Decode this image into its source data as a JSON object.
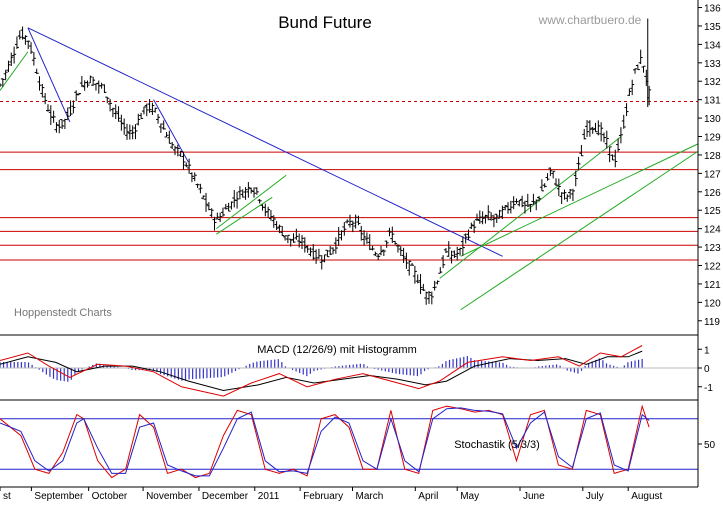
{
  "chart_data": {
    "type": "ohlc",
    "title": "Bund Future",
    "watermark": "www.chartbuero.de",
    "source_label": "Hoppenstedt Charts",
    "price_axis": {
      "ylim": [
        118.5,
        136.3
      ],
      "ticks": [
        "136",
        "135",
        "134",
        "133",
        "132",
        "131",
        "130",
        "129",
        "128",
        "127",
        "126",
        "125",
        "124",
        "123",
        "122",
        "121",
        "120",
        "119"
      ]
    },
    "time_axis": {
      "months": [
        {
          "label": "st",
          "pos": 0.0
        },
        {
          "label": "September",
          "pos": 0.045
        },
        {
          "label": "October",
          "pos": 0.127
        },
        {
          "label": "November",
          "pos": 0.205
        },
        {
          "label": "December",
          "pos": 0.285
        },
        {
          "label": "2011",
          "pos": 0.365
        },
        {
          "label": "February",
          "pos": 0.43
        },
        {
          "label": "March",
          "pos": 0.505
        },
        {
          "label": "April",
          "pos": 0.595
        },
        {
          "label": "May",
          "pos": 0.655
        },
        {
          "label": "June",
          "pos": 0.745
        },
        {
          "label": "July",
          "pos": 0.835
        },
        {
          "label": "August",
          "pos": 0.9
        }
      ]
    },
    "price_path": [
      [
        0.0,
        131.8
      ],
      [
        0.01,
        132.6
      ],
      [
        0.02,
        133.6
      ],
      [
        0.03,
        134.6
      ],
      [
        0.04,
        134.3
      ],
      [
        0.05,
        133.0
      ],
      [
        0.06,
        131.5
      ],
      [
        0.07,
        130.4
      ],
      [
        0.08,
        129.6
      ],
      [
        0.09,
        129.7
      ],
      [
        0.1,
        130.3
      ],
      [
        0.11,
        131.3
      ],
      [
        0.12,
        131.9
      ],
      [
        0.13,
        132.1
      ],
      [
        0.14,
        131.8
      ],
      [
        0.15,
        131.6
      ],
      [
        0.16,
        130.6
      ],
      [
        0.17,
        130.0
      ],
      [
        0.18,
        129.3
      ],
      [
        0.19,
        129.2
      ],
      [
        0.2,
        130.0
      ],
      [
        0.21,
        130.6
      ],
      [
        0.22,
        130.5
      ],
      [
        0.23,
        129.8
      ],
      [
        0.24,
        129.0
      ],
      [
        0.25,
        128.3
      ],
      [
        0.26,
        128.0
      ],
      [
        0.27,
        127.3
      ],
      [
        0.28,
        126.6
      ],
      [
        0.29,
        125.8
      ],
      [
        0.3,
        125.0
      ],
      [
        0.31,
        124.4
      ],
      [
        0.32,
        124.9
      ],
      [
        0.33,
        125.3
      ],
      [
        0.34,
        125.8
      ],
      [
        0.35,
        126.0
      ],
      [
        0.36,
        126.3
      ],
      [
        0.37,
        125.9
      ],
      [
        0.38,
        125.0
      ],
      [
        0.39,
        124.6
      ],
      [
        0.4,
        124.0
      ],
      [
        0.41,
        123.6
      ],
      [
        0.42,
        123.3
      ],
      [
        0.43,
        123.4
      ],
      [
        0.44,
        123.0
      ],
      [
        0.45,
        122.6
      ],
      [
        0.46,
        122.4
      ],
      [
        0.47,
        122.6
      ],
      [
        0.48,
        123.1
      ],
      [
        0.49,
        123.8
      ],
      [
        0.5,
        124.3
      ],
      [
        0.51,
        124.4
      ],
      [
        0.52,
        123.6
      ],
      [
        0.53,
        123.1
      ],
      [
        0.54,
        122.6
      ],
      [
        0.55,
        123.0
      ],
      [
        0.56,
        123.8
      ],
      [
        0.57,
        123.0
      ],
      [
        0.58,
        122.3
      ],
      [
        0.59,
        121.8
      ],
      [
        0.6,
        121.2
      ],
      [
        0.61,
        120.4
      ],
      [
        0.62,
        120.5
      ],
      [
        0.63,
        121.6
      ],
      [
        0.64,
        122.8
      ],
      [
        0.65,
        122.5
      ],
      [
        0.66,
        122.8
      ],
      [
        0.67,
        123.7
      ],
      [
        0.68,
        124.3
      ],
      [
        0.69,
        124.5
      ],
      [
        0.7,
        124.7
      ],
      [
        0.71,
        124.5
      ],
      [
        0.72,
        124.9
      ],
      [
        0.73,
        125.2
      ],
      [
        0.74,
        125.6
      ],
      [
        0.75,
        125.3
      ],
      [
        0.76,
        125.2
      ],
      [
        0.77,
        125.6
      ],
      [
        0.78,
        126.3
      ],
      [
        0.79,
        127.2
      ],
      [
        0.8,
        126.2
      ],
      [
        0.81,
        125.7
      ],
      [
        0.82,
        126.0
      ],
      [
        0.83,
        127.5
      ],
      [
        0.84,
        129.5
      ],
      [
        0.85,
        129.6
      ],
      [
        0.86,
        129.3
      ],
      [
        0.87,
        128.6
      ],
      [
        0.88,
        127.6
      ],
      [
        0.89,
        129.0
      ],
      [
        0.9,
        131.0
      ],
      [
        0.91,
        132.5
      ],
      [
        0.92,
        133.3
      ],
      [
        0.93,
        131.3
      ]
    ],
    "horizontal_lines": [
      {
        "y": 130.9,
        "color": "#cc0000",
        "style": "dashed"
      },
      {
        "y": 128.15,
        "color": "#cc0000",
        "style": "solid"
      },
      {
        "y": 127.2,
        "color": "#cc0000",
        "style": "solid"
      },
      {
        "y": 124.6,
        "color": "#cc0000",
        "style": "solid"
      },
      {
        "y": 123.85,
        "color": "#cc0000",
        "style": "solid"
      },
      {
        "y": 123.1,
        "color": "#cc0000",
        "style": "solid"
      },
      {
        "y": 122.3,
        "color": "#cc0000",
        "style": "solid"
      }
    ],
    "trend_lines": [
      {
        "from": [
          0.04,
          134.9
        ],
        "to": [
          0.72,
          122.5
        ],
        "color": "#2222cc"
      },
      {
        "from": [
          0.04,
          134.9
        ],
        "to": [
          0.1,
          129.8
        ],
        "color": "#2222cc"
      },
      {
        "from": [
          0.22,
          131.0
        ],
        "to": [
          0.27,
          127.6
        ],
        "color": "#2222cc"
      },
      {
        "from": [
          0.0,
          131.5
        ],
        "to": [
          0.04,
          133.6
        ],
        "color": "#22aa22"
      },
      {
        "from": [
          0.31,
          124.0
        ],
        "to": [
          0.41,
          126.9
        ],
        "color": "#22aa22"
      },
      {
        "from": [
          0.31,
          123.7
        ],
        "to": [
          0.39,
          125.7
        ],
        "color": "#22aa22"
      },
      {
        "from": [
          0.63,
          121.3
        ],
        "to": [
          0.89,
          129.0
        ],
        "color": "#22aa22"
      },
      {
        "from": [
          0.66,
          122.5
        ],
        "to": [
          1.0,
          128.6
        ],
        "color": "#22aa22"
      },
      {
        "from": [
          0.66,
          119.6
        ],
        "to": [
          1.0,
          128.2
        ],
        "color": "#22aa22"
      }
    ],
    "macd": {
      "label": "MACD (12/26/9) mit Histogramm",
      "ticks": [
        "1",
        "0",
        "-1"
      ],
      "ylim": [
        -1.6,
        1.6
      ],
      "macd_path": [
        [
          0,
          0.4
        ],
        [
          0.04,
          0.8
        ],
        [
          0.07,
          0.1
        ],
        [
          0.1,
          -0.5
        ],
        [
          0.14,
          0.2
        ],
        [
          0.18,
          0.1
        ],
        [
          0.22,
          -0.2
        ],
        [
          0.26,
          -1.0
        ],
        [
          0.32,
          -1.5
        ],
        [
          0.36,
          -0.8
        ],
        [
          0.4,
          -0.3
        ],
        [
          0.44,
          -1.0
        ],
        [
          0.48,
          -0.6
        ],
        [
          0.52,
          -0.3
        ],
        [
          0.56,
          -0.7
        ],
        [
          0.6,
          -1.1
        ],
        [
          0.63,
          -0.7
        ],
        [
          0.67,
          0.3
        ],
        [
          0.72,
          0.6
        ],
        [
          0.76,
          0.4
        ],
        [
          0.8,
          0.6
        ],
        [
          0.83,
          0.1
        ],
        [
          0.86,
          0.8
        ],
        [
          0.89,
          0.6
        ],
        [
          0.92,
          1.2
        ]
      ],
      "signal_path": [
        [
          0,
          0.2
        ],
        [
          0.04,
          0.6
        ],
        [
          0.08,
          0.3
        ],
        [
          0.11,
          -0.2
        ],
        [
          0.15,
          0.1
        ],
        [
          0.19,
          0.1
        ],
        [
          0.23,
          -0.2
        ],
        [
          0.27,
          -0.7
        ],
        [
          0.32,
          -1.2
        ],
        [
          0.37,
          -0.9
        ],
        [
          0.41,
          -0.5
        ],
        [
          0.45,
          -0.8
        ],
        [
          0.49,
          -0.6
        ],
        [
          0.53,
          -0.4
        ],
        [
          0.57,
          -0.6
        ],
        [
          0.61,
          -0.9
        ],
        [
          0.64,
          -0.7
        ],
        [
          0.68,
          0.1
        ],
        [
          0.73,
          0.5
        ],
        [
          0.77,
          0.4
        ],
        [
          0.81,
          0.5
        ],
        [
          0.84,
          0.2
        ],
        [
          0.87,
          0.6
        ],
        [
          0.9,
          0.6
        ],
        [
          0.92,
          0.9
        ]
      ]
    },
    "stochastic": {
      "label": "Stochastik (5/3/3)",
      "ticks": [
        "50"
      ],
      "ylim": [
        0,
        100
      ],
      "upper": 80,
      "lower": 20,
      "k_path": [
        [
          0.0,
          80
        ],
        [
          0.03,
          60
        ],
        [
          0.05,
          20
        ],
        [
          0.07,
          15
        ],
        [
          0.09,
          40
        ],
        [
          0.11,
          85
        ],
        [
          0.12,
          80
        ],
        [
          0.14,
          30
        ],
        [
          0.16,
          10
        ],
        [
          0.18,
          20
        ],
        [
          0.2,
          85
        ],
        [
          0.22,
          70
        ],
        [
          0.24,
          15
        ],
        [
          0.26,
          20
        ],
        [
          0.28,
          10
        ],
        [
          0.3,
          15
        ],
        [
          0.32,
          60
        ],
        [
          0.34,
          90
        ],
        [
          0.36,
          85
        ],
        [
          0.38,
          20
        ],
        [
          0.4,
          15
        ],
        [
          0.42,
          20
        ],
        [
          0.44,
          12
        ],
        [
          0.46,
          80
        ],
        [
          0.48,
          85
        ],
        [
          0.5,
          70
        ],
        [
          0.52,
          20
        ],
        [
          0.54,
          20
        ],
        [
          0.56,
          90
        ],
        [
          0.58,
          20
        ],
        [
          0.6,
          15
        ],
        [
          0.62,
          90
        ],
        [
          0.64,
          95
        ],
        [
          0.66,
          92
        ],
        [
          0.68,
          88
        ],
        [
          0.7,
          90
        ],
        [
          0.72,
          85
        ],
        [
          0.74,
          30
        ],
        [
          0.76,
          85
        ],
        [
          0.78,
          90
        ],
        [
          0.8,
          25
        ],
        [
          0.82,
          20
        ],
        [
          0.84,
          90
        ],
        [
          0.86,
          85
        ],
        [
          0.88,
          15
        ],
        [
          0.9,
          20
        ],
        [
          0.92,
          95
        ],
        [
          0.93,
          70
        ]
      ],
      "d_path": [
        [
          0.0,
          75
        ],
        [
          0.03,
          65
        ],
        [
          0.05,
          30
        ],
        [
          0.07,
          18
        ],
        [
          0.09,
          30
        ],
        [
          0.11,
          75
        ],
        [
          0.12,
          80
        ],
        [
          0.14,
          45
        ],
        [
          0.16,
          15
        ],
        [
          0.18,
          15
        ],
        [
          0.2,
          70
        ],
        [
          0.22,
          75
        ],
        [
          0.24,
          25
        ],
        [
          0.26,
          18
        ],
        [
          0.28,
          12
        ],
        [
          0.3,
          12
        ],
        [
          0.32,
          45
        ],
        [
          0.34,
          80
        ],
        [
          0.36,
          88
        ],
        [
          0.38,
          30
        ],
        [
          0.4,
          17
        ],
        [
          0.42,
          18
        ],
        [
          0.44,
          15
        ],
        [
          0.46,
          65
        ],
        [
          0.48,
          82
        ],
        [
          0.5,
          75
        ],
        [
          0.52,
          30
        ],
        [
          0.54,
          20
        ],
        [
          0.56,
          80
        ],
        [
          0.58,
          30
        ],
        [
          0.6,
          17
        ],
        [
          0.62,
          80
        ],
        [
          0.64,
          92
        ],
        [
          0.66,
          93
        ],
        [
          0.68,
          90
        ],
        [
          0.7,
          89
        ],
        [
          0.72,
          86
        ],
        [
          0.74,
          45
        ],
        [
          0.76,
          75
        ],
        [
          0.78,
          88
        ],
        [
          0.8,
          35
        ],
        [
          0.82,
          22
        ],
        [
          0.84,
          80
        ],
        [
          0.86,
          87
        ],
        [
          0.88,
          25
        ],
        [
          0.9,
          18
        ],
        [
          0.92,
          85
        ],
        [
          0.93,
          78
        ]
      ]
    }
  }
}
